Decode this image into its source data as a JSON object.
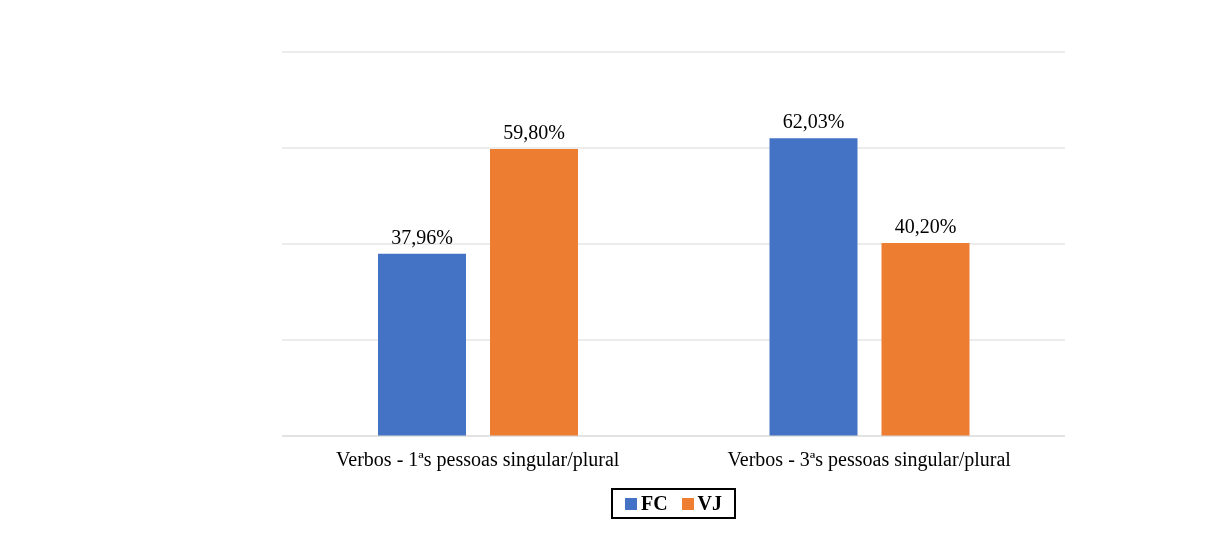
{
  "chart_data": {
    "type": "bar",
    "categories": [
      "Verbos - 1ªs pessoas singular/plural",
      "Verbos - 3ªs pessoas singular/plural"
    ],
    "series": [
      {
        "name": "FC",
        "color": "#4472c4",
        "values": [
          37.96,
          62.03
        ],
        "value_labels": [
          "37,96%",
          "62,03%"
        ]
      },
      {
        "name": "VJ",
        "color": "#ed7d31",
        "values": [
          59.8,
          40.2
        ],
        "value_labels": [
          "59,80%",
          "40,20%"
        ]
      }
    ],
    "grid": "y",
    "legend": "bottom",
    "tick_labels": "x"
  }
}
